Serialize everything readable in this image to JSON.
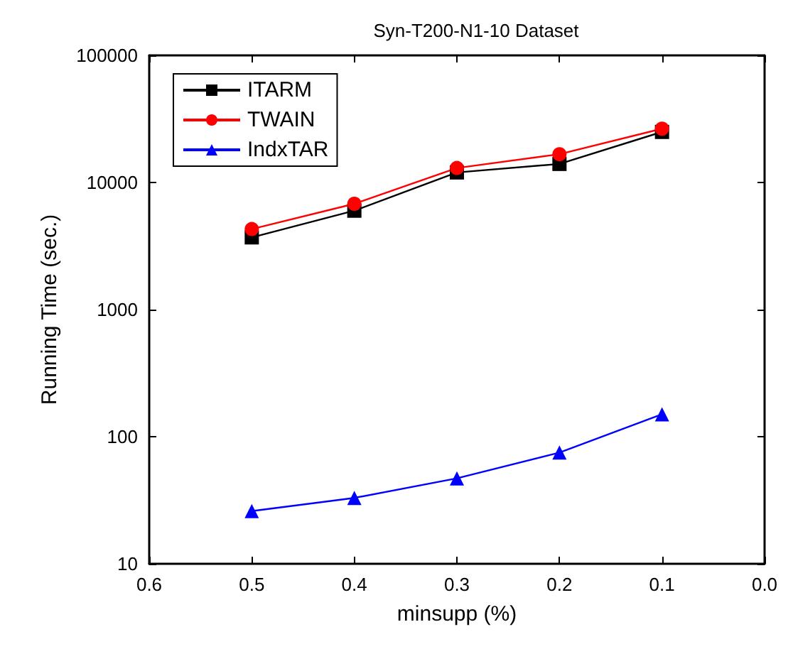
{
  "chart_data": {
    "type": "line",
    "title": "Syn-T200-N1-10 Dataset",
    "xlabel": "minsupp (%)",
    "ylabel": "Running Time (sec.)",
    "x": [
      0.5,
      0.4,
      0.3,
      0.2,
      0.1
    ],
    "series": [
      {
        "name": "ITARM",
        "color": "#000000",
        "marker": "square",
        "values": [
          3700,
          6000,
          12000,
          14000,
          25000
        ]
      },
      {
        "name": "TWAIN",
        "color": "#ff0000",
        "marker": "circle",
        "values": [
          4300,
          6800,
          13000,
          16700,
          26500
        ]
      },
      {
        "name": "IndxTAR",
        "color": "#0000ff",
        "marker": "triangle",
        "values": [
          26,
          33,
          47,
          75,
          150
        ]
      }
    ],
    "xlim": [
      0.6,
      0.0
    ],
    "xticks": [
      0.6,
      0.5,
      0.4,
      0.3,
      0.2,
      0.1,
      {
        "value": 0,
        "label": "0.0"
      }
    ],
    "ylim": [
      10,
      100000
    ],
    "yticks": [
      10,
      100,
      1000,
      10000,
      100000
    ],
    "log": "y",
    "grid": false,
    "legend": "top left"
  }
}
